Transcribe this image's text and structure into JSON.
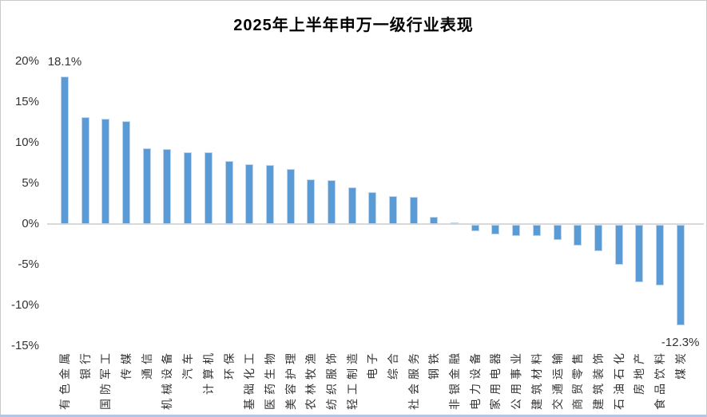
{
  "chart_data": {
    "type": "bar",
    "title": "2025年上半年申万一级行业表现",
    "categories": [
      "有色金属",
      "银行",
      "国防军工",
      "传媒",
      "通信",
      "机械设备",
      "汽车",
      "计算机",
      "环保",
      "基础化工",
      "医药生物",
      "美容护理",
      "农林牧渔",
      "纺织服饰",
      "轻工制造",
      "电子",
      "综合",
      "社会服务",
      "钢铁",
      "非银金融",
      "电力设备",
      "家用电器",
      "公用事业",
      "建筑材料",
      "交通运输",
      "商贸零售",
      "建筑装饰",
      "石油石化",
      "房地产",
      "食品饮料",
      "煤炭"
    ],
    "values": [
      18.1,
      13.1,
      12.9,
      12.6,
      9.3,
      9.2,
      8.8,
      8.8,
      7.7,
      7.3,
      7.2,
      6.8,
      5.5,
      5.4,
      4.5,
      3.9,
      3.4,
      3.3,
      0.9,
      0.2,
      -0.8,
      -1.2,
      -1.4,
      -1.4,
      -1.9,
      -2.5,
      -3.2,
      -4.9,
      -7.0,
      -7.4,
      -12.3
    ],
    "unit": "%",
    "xlabel": "",
    "ylabel": "",
    "ylim": [
      -15,
      20
    ],
    "y_ticks": [
      {
        "label": "20%",
        "value": 20
      },
      {
        "label": "15%",
        "value": 15
      },
      {
        "label": "10%",
        "value": 10
      },
      {
        "label": "5%",
        "value": 5
      },
      {
        "label": "0%",
        "value": 0
      },
      {
        "label": "-5%",
        "value": -5
      },
      {
        "label": "-10%",
        "value": -10
      },
      {
        "label": "-15%",
        "value": -15
      }
    ],
    "data_labels": [
      {
        "category": "有色金属",
        "text": "18.1%",
        "position": "above"
      },
      {
        "category": "煤炭",
        "text": "-12.3%",
        "position": "below"
      }
    ],
    "gridlines": false,
    "legend": "none",
    "bar_color": "#5b9bd5",
    "bar_edge_color": "#bcd5ec",
    "axis_line_color": "#d9d9d9",
    "text_color": "#333333"
  }
}
